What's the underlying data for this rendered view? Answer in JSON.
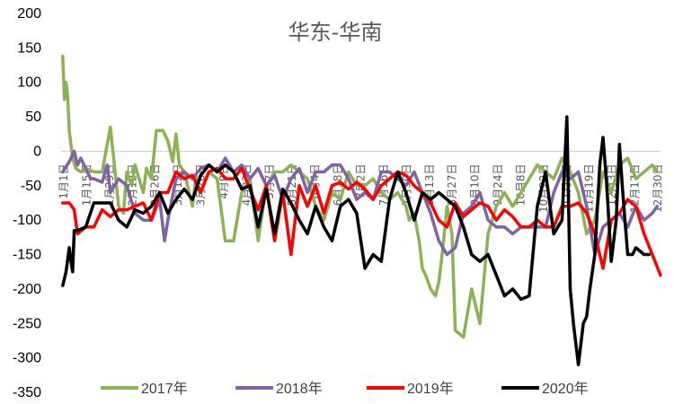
{
  "chart_data": {
    "type": "line",
    "title": "华东-华南",
    "xlabel": "",
    "ylabel": "",
    "ylim": [
      -350,
      200
    ],
    "yticks": [
      200,
      150,
      100,
      50,
      0,
      -50,
      -100,
      -150,
      -200,
      -250,
      -300,
      -350
    ],
    "xlim": [
      0,
      365
    ],
    "x_tick_labels": [
      "1月1日",
      "1月15日",
      "1月29日",
      "2月12日",
      "2月26日",
      "3月12日",
      "3月26日",
      "4月9日",
      "4月23日",
      "5月7日",
      "5月21日",
      "6月4日",
      "6月18日",
      "7月2日",
      "7月16日",
      "7月30日",
      "8月13日",
      "8月27日",
      "9月10日",
      "9月24日",
      "10月8日",
      "10月22日",
      "11月5日",
      "11月19日",
      "12月3日",
      "12月17日",
      "12月30日"
    ],
    "legend_position": "bottom",
    "grid": false,
    "series": [
      {
        "name": "2017年",
        "color": "#8DB255",
        "x": [
          1,
          2,
          3,
          4,
          5,
          7,
          9,
          12,
          15,
          20,
          25,
          30,
          32,
          35,
          38,
          40,
          43,
          45,
          50,
          52,
          55,
          58,
          62,
          65,
          68,
          70,
          72,
          75,
          78,
          80,
          82,
          85,
          88,
          90,
          95,
          100,
          105,
          110,
          115,
          120,
          125,
          130,
          135,
          140,
          145,
          150,
          155,
          160,
          165,
          170,
          175,
          180,
          185,
          190,
          195,
          200,
          205,
          210,
          212,
          215,
          218,
          220,
          222,
          225,
          228,
          230,
          232,
          235,
          238,
          240,
          245,
          250,
          255,
          260,
          265,
          270,
          275,
          280,
          285,
          290,
          295,
          300,
          305,
          310,
          315,
          320,
          325,
          330,
          335,
          340,
          345,
          350,
          355,
          360,
          363
        ],
        "values": [
          138,
          75,
          100,
          80,
          30,
          -10,
          -25,
          -30,
          -25,
          -30,
          -30,
          35,
          -10,
          -80,
          -90,
          -30,
          -50,
          -20,
          -60,
          -25,
          -40,
          30,
          30,
          15,
          -15,
          25,
          -20,
          -30,
          -60,
          -80,
          -40,
          -60,
          -40,
          -30,
          -40,
          -130,
          -130,
          -60,
          -40,
          -130,
          -50,
          -30,
          -30,
          -20,
          -30,
          -40,
          -80,
          -100,
          -60,
          -70,
          -30,
          -50,
          -50,
          -40,
          -60,
          -70,
          -60,
          -80,
          -100,
          -90,
          -130,
          -170,
          -180,
          -200,
          -210,
          -190,
          -150,
          -80,
          -120,
          -260,
          -270,
          -200,
          -250,
          -120,
          -80,
          -60,
          -80,
          -60,
          -40,
          -20,
          -30,
          -40,
          -10,
          -30,
          -60,
          -120,
          -100,
          -30,
          -60,
          -20,
          -10,
          -40,
          -30,
          -20,
          -30
        ]
      },
      {
        "name": "2018年",
        "color": "#7E63A5",
        "x": [
          1,
          5,
          8,
          10,
          12,
          15,
          18,
          20,
          25,
          28,
          30,
          35,
          40,
          45,
          50,
          55,
          60,
          63,
          65,
          70,
          75,
          80,
          85,
          90,
          95,
          100,
          105,
          110,
          115,
          120,
          125,
          130,
          135,
          140,
          145,
          150,
          155,
          160,
          165,
          170,
          175,
          180,
          185,
          190,
          195,
          200,
          205,
          210,
          215,
          220,
          225,
          230,
          235,
          240,
          245,
          250,
          255,
          260,
          265,
          270,
          275,
          280,
          285,
          290,
          295,
          300,
          305,
          310,
          315,
          320,
          325,
          330,
          335,
          340,
          345,
          350,
          355,
          360,
          363
        ],
        "values": [
          -30,
          -15,
          0,
          -20,
          -10,
          -25,
          -40,
          -40,
          -45,
          -20,
          -60,
          -40,
          -50,
          -90,
          -100,
          -100,
          -70,
          -130,
          -100,
          -40,
          -30,
          -40,
          -25,
          -20,
          -30,
          -10,
          -30,
          -20,
          -40,
          -25,
          -50,
          -35,
          -70,
          -40,
          -25,
          -60,
          -30,
          -30,
          -20,
          -20,
          -40,
          -70,
          -60,
          -70,
          -30,
          -30,
          -40,
          -50,
          -30,
          -60,
          -90,
          -130,
          -150,
          -140,
          -90,
          -80,
          -60,
          -100,
          -110,
          -110,
          -120,
          -110,
          -110,
          -110,
          -110,
          -60,
          -30,
          -40,
          -30,
          -80,
          -150,
          -110,
          -100,
          -90,
          -110,
          -80,
          -100,
          -90,
          -80
        ]
      },
      {
        "name": "2019年",
        "color": "#FF0000",
        "x": [
          1,
          5,
          8,
          10,
          15,
          20,
          25,
          30,
          35,
          40,
          45,
          50,
          55,
          60,
          65,
          70,
          75,
          80,
          85,
          90,
          95,
          100,
          105,
          110,
          115,
          120,
          125,
          128,
          130,
          135,
          140,
          145,
          150,
          155,
          160,
          165,
          170,
          175,
          180,
          185,
          190,
          195,
          200,
          205,
          210,
          215,
          220,
          225,
          230,
          235,
          240,
          245,
          250,
          255,
          260,
          265,
          270,
          275,
          280,
          285,
          290,
          295,
          300,
          305,
          310,
          315,
          320,
          325,
          330,
          335,
          340,
          345,
          350,
          355,
          360,
          365
        ],
        "values": [
          -75,
          -75,
          -85,
          -120,
          -110,
          -110,
          -85,
          -95,
          -85,
          -85,
          -80,
          -75,
          -100,
          -60,
          -60,
          -30,
          -40,
          -35,
          -60,
          -30,
          -25,
          -40,
          -40,
          -25,
          -55,
          -85,
          -50,
          -100,
          -130,
          -60,
          -150,
          -50,
          -80,
          -50,
          -90,
          -50,
          -45,
          -55,
          -45,
          -55,
          -70,
          -50,
          -40,
          -30,
          -35,
          -50,
          -60,
          -75,
          -100,
          -110,
          -75,
          -95,
          -85,
          -75,
          -80,
          -100,
          -85,
          -95,
          -110,
          -110,
          -100,
          -110,
          -110,
          -80,
          -80,
          -75,
          -90,
          -120,
          -170,
          -100,
          -90,
          -70,
          -80,
          -120,
          -150,
          -180
        ]
      },
      {
        "name": "2020年",
        "color": "#000000",
        "x": [
          1,
          3,
          5,
          6,
          7,
          8,
          10,
          15,
          20,
          25,
          30,
          35,
          40,
          45,
          50,
          55,
          60,
          65,
          70,
          75,
          80,
          85,
          90,
          95,
          100,
          105,
          110,
          115,
          120,
          125,
          130,
          135,
          140,
          145,
          150,
          155,
          160,
          165,
          170,
          175,
          180,
          185,
          190,
          195,
          200,
          205,
          210,
          215,
          220,
          225,
          230,
          235,
          240,
          245,
          250,
          255,
          260,
          265,
          270,
          275,
          280,
          285,
          290,
          295,
          300,
          305,
          308,
          310,
          312,
          315,
          318,
          320,
          322,
          325,
          328,
          330,
          332,
          335,
          338,
          340,
          342,
          345,
          348,
          350,
          355,
          358
        ],
        "values": [
          -195,
          -175,
          -140,
          -160,
          -175,
          -115,
          -115,
          -110,
          -75,
          -75,
          -75,
          -100,
          -110,
          -85,
          -90,
          -80,
          -60,
          -90,
          -70,
          -55,
          -70,
          -35,
          -20,
          -30,
          -20,
          -30,
          -55,
          -50,
          -110,
          -55,
          -120,
          -55,
          -75,
          -100,
          -120,
          -80,
          -110,
          -130,
          -80,
          -70,
          -90,
          -170,
          -150,
          -160,
          -70,
          -30,
          -60,
          -100,
          -60,
          -70,
          -60,
          -70,
          -80,
          -110,
          -150,
          -160,
          -150,
          -180,
          -210,
          -200,
          -215,
          -210,
          -80,
          -30,
          -120,
          -100,
          50,
          -200,
          -250,
          -310,
          -250,
          -240,
          -200,
          -150,
          -20,
          20,
          -40,
          -160,
          -100,
          10,
          -60,
          -150,
          -150,
          -140,
          -150,
          -150
        ]
      }
    ]
  }
}
